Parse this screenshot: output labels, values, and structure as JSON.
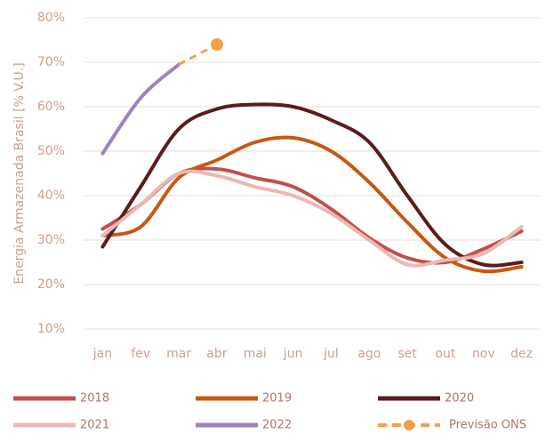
{
  "chart_data": {
    "type": "line",
    "y_label": "Energia Armazenada Brasil [% V.U.]",
    "categories": [
      "jan",
      "fev",
      "mar",
      "abr",
      "mai",
      "jun",
      "jul",
      "ago",
      "set",
      "out",
      "nov",
      "dez"
    ],
    "ylim": [
      10,
      80
    ],
    "yticks": [
      {
        "value": 10,
        "label": "10%"
      },
      {
        "value": 20,
        "label": "20%"
      },
      {
        "value": 30,
        "label": "30%"
      },
      {
        "value": 40,
        "label": "40%"
      },
      {
        "value": 50,
        "label": "50%"
      },
      {
        "value": 60,
        "label": "60%"
      },
      {
        "value": 70,
        "label": "70%"
      },
      {
        "value": 80,
        "label": "80%"
      }
    ],
    "grid": true,
    "legend": "bottom",
    "series": [
      {
        "name": "2018",
        "color": "#c0504d",
        "values": [
          32.5,
          38,
          45,
          46,
          44,
          42,
          37,
          30.5,
          26,
          25,
          28,
          32
        ]
      },
      {
        "name": "2019",
        "color": "#c65911",
        "values": [
          31,
          33,
          44,
          48,
          52,
          53,
          50,
          43,
          34,
          26,
          23,
          24
        ]
      },
      {
        "name": "2020",
        "color": "#5b1c1c",
        "values": [
          28.5,
          42,
          55,
          59.5,
          60.5,
          60,
          57,
          52,
          40,
          29,
          24.5,
          25
        ]
      },
      {
        "name": "2021",
        "color": "#ebb8b3",
        "values": [
          31,
          38,
          45,
          44.5,
          42,
          40,
          36,
          30,
          24.5,
          25.5,
          27,
          33
        ]
      },
      {
        "name": "2022",
        "color": "#9c84b8",
        "values": [
          49.5,
          62,
          69.5,
          null,
          null,
          null,
          null,
          null,
          null,
          null,
          null,
          null
        ]
      },
      {
        "name": "Previsão ONS",
        "color": "#f4a04a",
        "dashed": true,
        "values": [
          null,
          null,
          69.5,
          74,
          null,
          null,
          null,
          null,
          null,
          null,
          null,
          null
        ]
      }
    ]
  }
}
